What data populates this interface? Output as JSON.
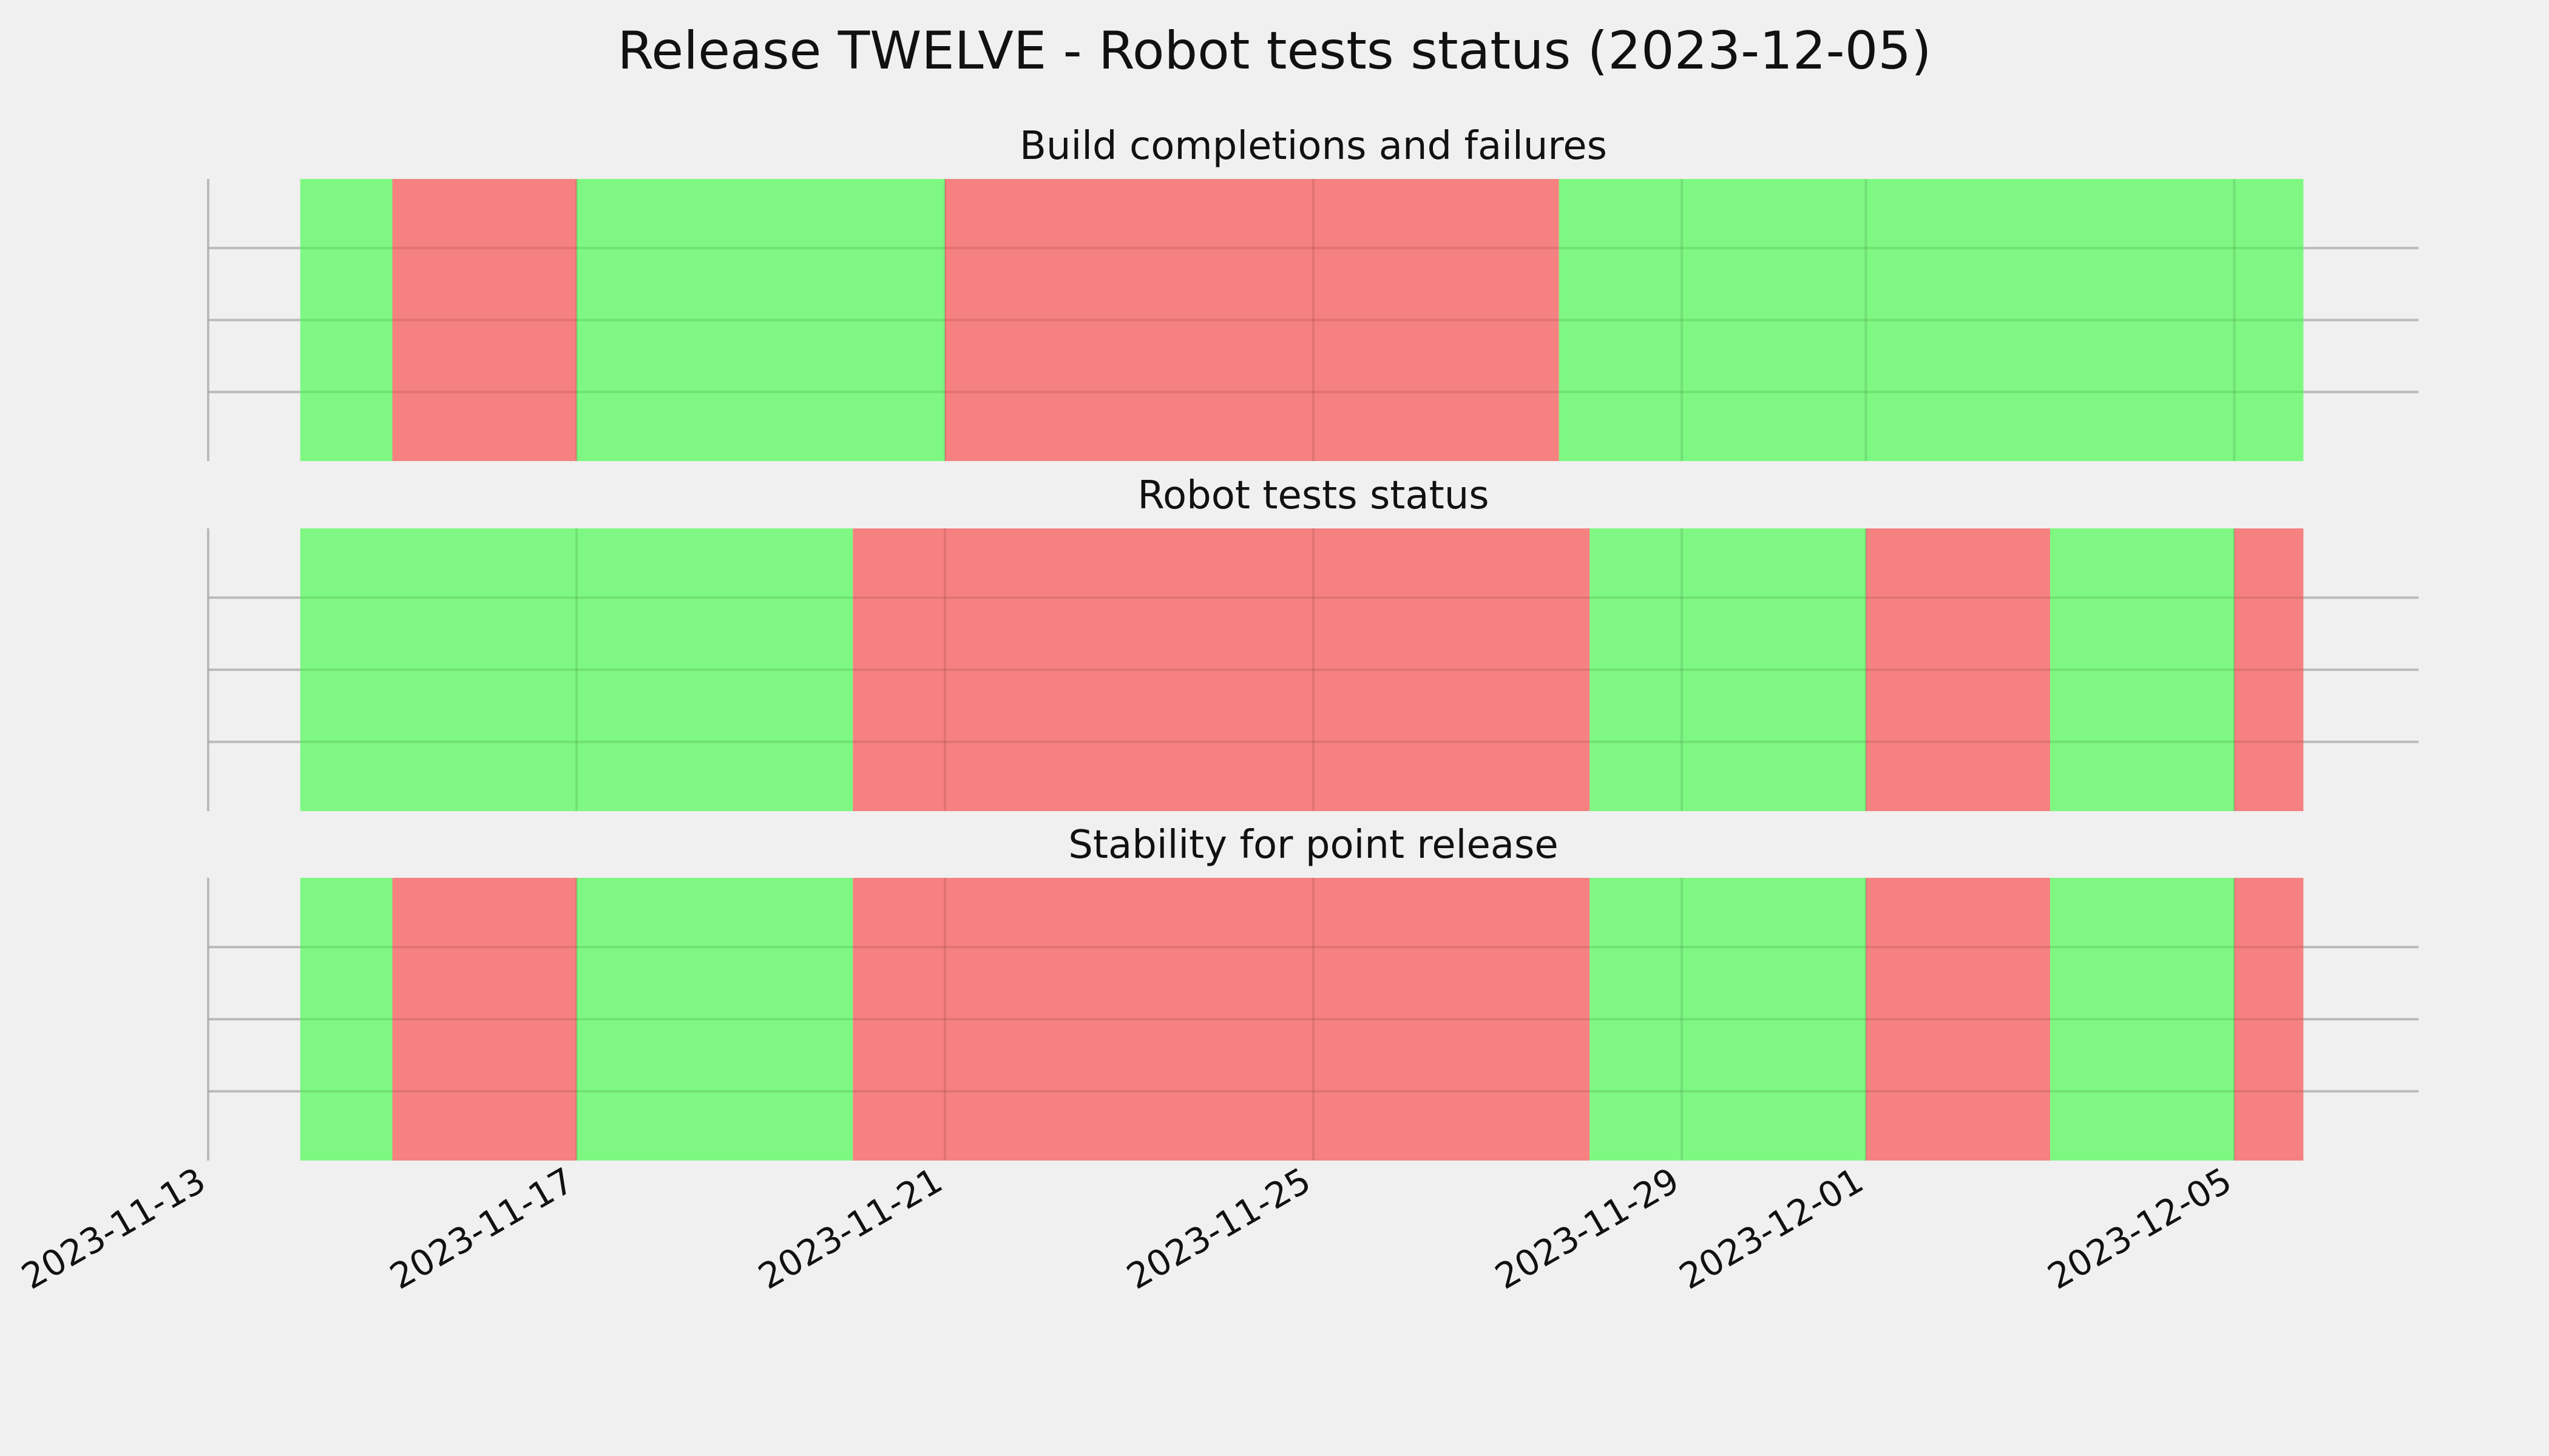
{
  "chart_data": {
    "type": "timeline",
    "title": "Release TWELVE - Robot tests status (2023-12-05)",
    "xlim": [
      "2023-11-13",
      "2023-12-07"
    ],
    "x_ticks": [
      "2023-11-13",
      "2023-11-17",
      "2023-11-21",
      "2023-11-25",
      "2023-11-29",
      "2023-12-01",
      "2023-12-05"
    ],
    "grid": true,
    "colors": {
      "pass": "#74f878",
      "fail": "#f67777",
      "background": "#f0f0f0"
    },
    "panels": [
      {
        "title": "Build completions and failures",
        "segments": [
          {
            "start": "2023-11-14",
            "end": "2023-11-15",
            "status": "pass"
          },
          {
            "start": "2023-11-15",
            "end": "2023-11-17",
            "status": "fail"
          },
          {
            "start": "2023-11-17",
            "end": "2023-11-21",
            "status": "pass"
          },
          {
            "start": "2023-11-21",
            "end": "2023-11-27 16:00",
            "status": "fail"
          },
          {
            "start": "2023-11-27 16:00",
            "end": "2023-12-05 18:00",
            "status": "pass"
          }
        ]
      },
      {
        "title": "Robot tests status",
        "segments": [
          {
            "start": "2023-11-14",
            "end": "2023-11-20",
            "status": "pass"
          },
          {
            "start": "2023-11-20",
            "end": "2023-11-28",
            "status": "fail"
          },
          {
            "start": "2023-11-28",
            "end": "2023-12-01",
            "status": "pass"
          },
          {
            "start": "2023-12-01",
            "end": "2023-12-03",
            "status": "fail"
          },
          {
            "start": "2023-12-03",
            "end": "2023-12-05",
            "status": "pass"
          },
          {
            "start": "2023-12-05",
            "end": "2023-12-05 18:00",
            "status": "fail"
          }
        ]
      },
      {
        "title": "Stability for point release",
        "segments": [
          {
            "start": "2023-11-14",
            "end": "2023-11-15",
            "status": "pass"
          },
          {
            "start": "2023-11-15",
            "end": "2023-11-17",
            "status": "fail"
          },
          {
            "start": "2023-11-17",
            "end": "2023-11-20",
            "status": "pass"
          },
          {
            "start": "2023-11-20",
            "end": "2023-11-28",
            "status": "fail"
          },
          {
            "start": "2023-11-28",
            "end": "2023-12-01",
            "status": "pass"
          },
          {
            "start": "2023-12-01",
            "end": "2023-12-03",
            "status": "fail"
          },
          {
            "start": "2023-12-03",
            "end": "2023-12-05",
            "status": "pass"
          },
          {
            "start": "2023-12-05",
            "end": "2023-12-05 18:00",
            "status": "fail"
          }
        ]
      }
    ]
  }
}
